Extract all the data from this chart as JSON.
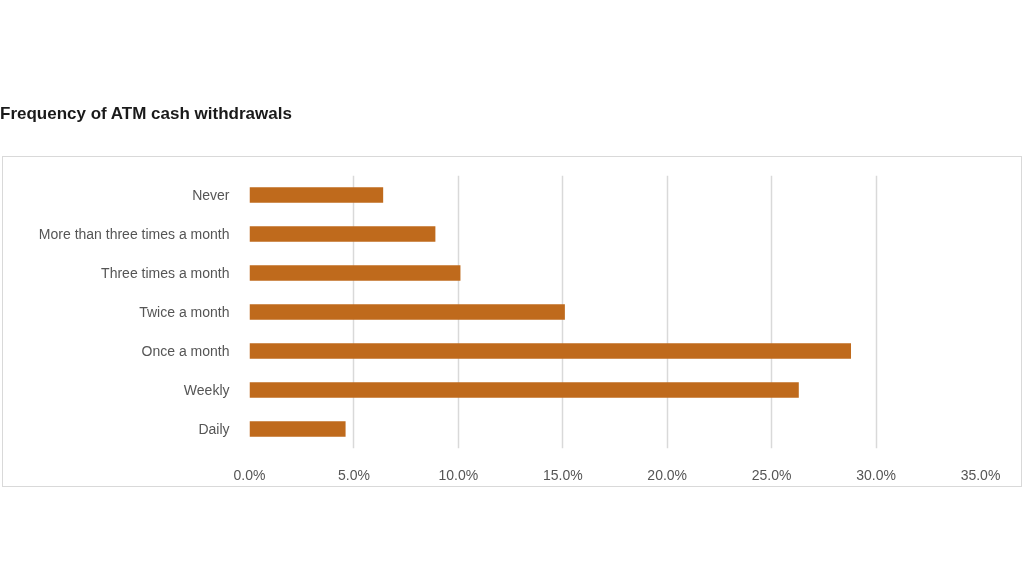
{
  "chart_data": {
    "type": "bar",
    "orientation": "horizontal",
    "title": "Frequency of ATM cash withdrawals",
    "categories": [
      "Never",
      "More than three times a month",
      "Three times a month",
      "Twice a month",
      "Once a month",
      "Weekly",
      "Daily"
    ],
    "values": [
      6.4,
      8.9,
      10.1,
      15.1,
      28.8,
      26.3,
      4.6
    ],
    "color": "#bf6a1c",
    "xlim": [
      0,
      35
    ],
    "xticks": [
      {
        "value": 0,
        "label": "0.0%"
      },
      {
        "value": 5,
        "label": "5.0%"
      },
      {
        "value": 10,
        "label": "10.0%"
      },
      {
        "value": 15,
        "label": "15.0%"
      },
      {
        "value": 20,
        "label": "20.0%"
      },
      {
        "value": 25,
        "label": "25.0%"
      },
      {
        "value": 30,
        "label": "30.0%"
      },
      {
        "value": 35,
        "label": "35.0%"
      }
    ],
    "grid": "x"
  }
}
